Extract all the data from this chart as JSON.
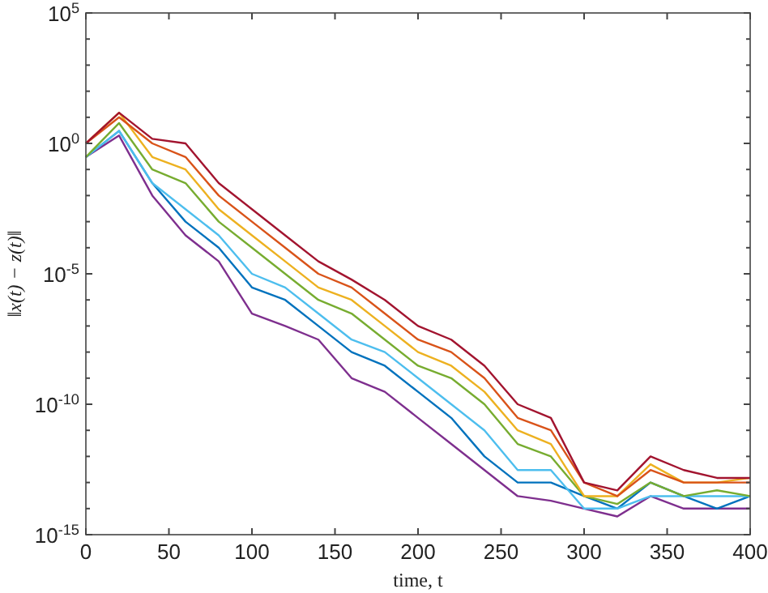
{
  "chart_data": {
    "type": "line",
    "xlabel": "time, t",
    "ylabel": "‖x(t) − z(t)‖",
    "log": "y",
    "grid": false,
    "line_style": "solid",
    "marker": "none",
    "x": [
      0,
      20,
      40,
      60,
      80,
      100,
      120,
      140,
      160,
      180,
      200,
      220,
      240,
      260,
      280,
      300,
      320,
      340,
      360,
      380,
      400
    ],
    "xlim": [
      0,
      400
    ],
    "xticks": [
      0,
      50,
      100,
      150,
      200,
      250,
      300,
      350,
      400
    ],
    "ylim": [
      1e-15,
      100000
    ],
    "yticks": [
      {
        "value": 1e-15,
        "label": "10$^{-15}$"
      },
      {
        "value": 1e-14,
        "label": null
      },
      {
        "value": 1e-13,
        "label": null
      },
      {
        "value": 1e-12,
        "label": null
      },
      {
        "value": 1e-11,
        "label": null
      },
      {
        "value": 1e-10,
        "label": "10$^{-10}$"
      },
      {
        "value": 1e-09,
        "label": null
      },
      {
        "value": 1e-08,
        "label": null
      },
      {
        "value": 1e-07,
        "label": null
      },
      {
        "value": 1e-06,
        "label": null
      },
      {
        "value": 1e-05,
        "label": "10$^{-5}$"
      },
      {
        "value": 0.0001,
        "label": null
      },
      {
        "value": 0.001,
        "label": null
      },
      {
        "value": 0.01,
        "label": null
      },
      {
        "value": 0.1,
        "label": null
      },
      {
        "value": 1,
        "label": "10$^{0}$"
      },
      {
        "value": 10,
        "label": null
      },
      {
        "value": 100,
        "label": null
      },
      {
        "value": 1000,
        "label": null
      },
      {
        "value": 10000,
        "label": null
      },
      {
        "value": 100000,
        "label": "10$^{5}$"
      }
    ],
    "series": [
      {
        "color": "#7e2f8e",
        "values": [
          0.3,
          2,
          0.01,
          0.0003,
          3e-05,
          3e-07,
          1e-07,
          3e-08,
          1e-09,
          3e-10,
          3e-11,
          3e-12,
          3e-13,
          3e-14,
          2e-14,
          1e-14,
          5e-15,
          3e-14,
          1e-14,
          1e-14,
          1e-14
        ]
      },
      {
        "color": "#0072bd",
        "values": [
          0.3,
          3,
          0.03,
          0.001,
          0.0001,
          3e-06,
          1e-06,
          1e-07,
          1e-08,
          3e-09,
          3e-10,
          3e-11,
          1e-12,
          1e-13,
          1e-13,
          3e-14,
          1e-14,
          1e-13,
          3e-14,
          1e-14,
          3e-14
        ]
      },
      {
        "color": "#4dbeee",
        "values": [
          0.3,
          3,
          0.03,
          0.003,
          0.0003,
          1e-05,
          3e-06,
          3e-07,
          3e-08,
          1e-08,
          1e-09,
          1e-10,
          1e-11,
          3e-13,
          3e-13,
          1e-14,
          1e-14,
          3e-14,
          3e-14,
          3e-14,
          3e-14
        ]
      },
      {
        "color": "#77ac30",
        "values": [
          0.3,
          6,
          0.1,
          0.03,
          0.001,
          0.0001,
          1e-05,
          1e-06,
          3e-07,
          3e-08,
          3e-09,
          1e-09,
          1e-10,
          3e-12,
          1e-12,
          3e-14,
          1.5e-14,
          1e-13,
          3e-14,
          5e-14,
          3e-14
        ]
      },
      {
        "color": "#edb120",
        "values": [
          1,
          15,
          0.3,
          0.1,
          0.003,
          0.0003,
          3e-05,
          3e-06,
          1e-06,
          1e-07,
          1e-08,
          3e-09,
          3e-10,
          1e-11,
          3e-12,
          3e-14,
          3e-14,
          5e-13,
          1e-13,
          1e-13,
          1.5e-13
        ]
      },
      {
        "color": "#d95319",
        "values": [
          1,
          10,
          1,
          0.3,
          0.01,
          0.001,
          0.0001,
          1e-05,
          3e-06,
          3e-07,
          3e-08,
          1e-08,
          1e-09,
          3e-11,
          1e-11,
          1e-13,
          3e-14,
          3e-13,
          1e-13,
          1e-13,
          1e-13
        ]
      },
      {
        "color": "#a2142f",
        "values": [
          1,
          15,
          1.5,
          1,
          0.03,
          0.003,
          0.0003,
          3e-05,
          6e-06,
          1e-06,
          1e-07,
          3e-08,
          3e-09,
          1e-10,
          3e-11,
          1e-13,
          5e-14,
          1e-12,
          3e-13,
          1.5e-13,
          1.5e-13
        ]
      }
    ]
  }
}
